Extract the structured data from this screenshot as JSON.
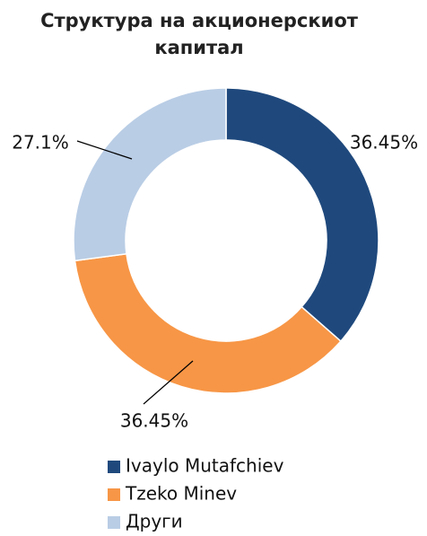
{
  "chart_data": {
    "type": "donut",
    "title": "Структура на акционерскиот капитал",
    "categories": [
      "Ivaylo Mutafchiev",
      "Tzeko Minev",
      "Други"
    ],
    "values": [
      36.45,
      36.45,
      27.1
    ],
    "value_labels": [
      "36.45%",
      "36.45%",
      "27.1%"
    ],
    "colors": [
      "#1f497d",
      "#f79646",
      "#b9cde5"
    ],
    "legend": "bottom"
  }
}
